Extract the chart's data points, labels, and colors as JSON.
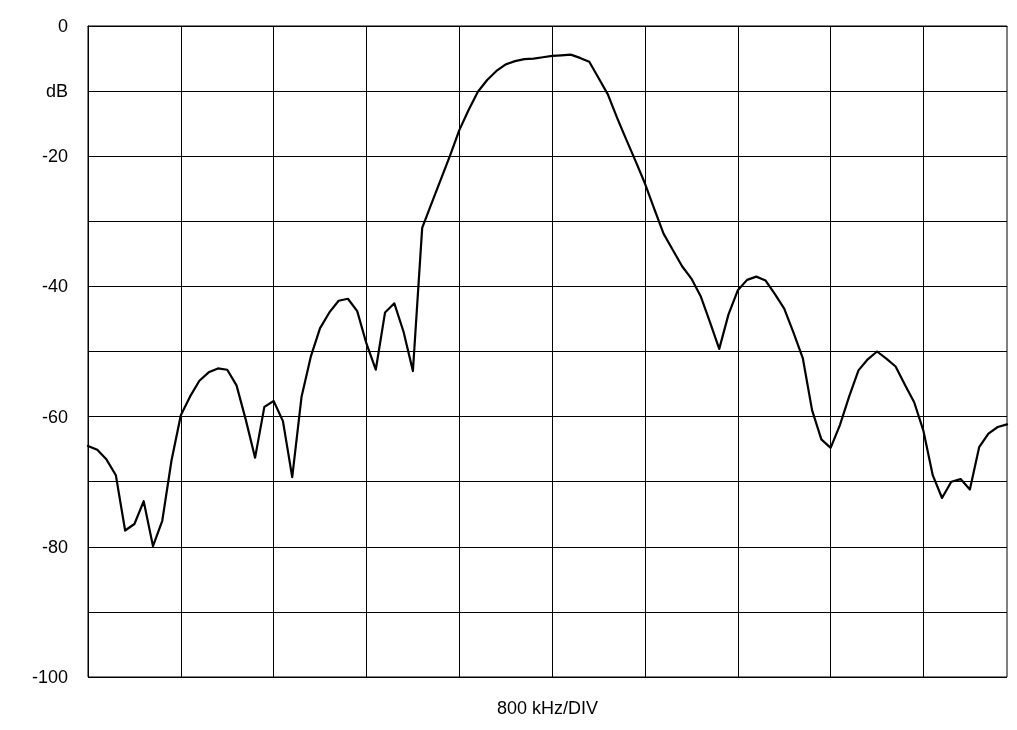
{
  "chart_data": {
    "type": "line",
    "xlabel": "800 kHz/DIV",
    "categories": [
      null,
      null,
      null,
      null,
      null,
      null,
      null,
      null,
      null,
      null,
      null,
      null,
      null,
      null,
      null,
      null,
      null,
      null,
      null,
      null,
      null,
      null,
      null,
      null,
      null,
      null,
      null,
      null,
      null,
      null,
      null,
      null,
      null,
      null,
      null,
      null,
      null,
      null,
      null,
      null,
      null,
      null,
      null,
      null,
      null,
      null,
      null,
      null,
      null,
      null,
      null,
      null,
      null,
      null,
      null,
      null,
      null,
      null,
      null,
      null,
      null,
      null,
      null,
      null,
      null,
      null,
      null,
      null,
      null,
      null,
      null,
      null,
      null,
      null,
      null,
      null,
      null,
      null,
      null,
      null,
      null,
      null,
      null,
      null,
      null,
      null,
      null,
      null,
      null,
      null,
      null,
      null,
      null,
      null,
      null,
      null,
      null,
      null,
      null,
      null
    ],
    "ylim": [
      -100,
      0
    ],
    "yticks": [
      0,
      {
        "value": -10,
        "label": "dB"
      },
      -20,
      {
        "value": -30,
        "label": null
      },
      -40,
      {
        "value": -50,
        "label": null
      },
      -60,
      {
        "value": -70,
        "label": null
      },
      -80,
      {
        "value": -90,
        "label": null
      },
      -100
    ],
    "tick_labels": "y",
    "grid": true,
    "marker": "none",
    "line_style": "solid",
    "series": [
      {
        "color": "#000000",
        "values": [
          -64.5,
          -65.1,
          -66.6,
          -69,
          -77.5,
          -76.5,
          -73,
          -79.9,
          -76,
          -66.7,
          -59.8,
          -56.9,
          -54.5,
          -53.2,
          -52.6,
          -52.8,
          -55.2,
          -60.5,
          -66.3,
          -58.5,
          -57.6,
          -60.7,
          -69.3,
          -57,
          -50.8,
          -46.4,
          -44,
          -42.2,
          -41.9,
          -43.8,
          -48.8,
          -52.8,
          -44,
          -42.6,
          -47,
          -53,
          -31,
          -27.3,
          -23.6,
          -19.9,
          -16,
          -12.9,
          -10.1,
          -8.3,
          -6.9,
          -5.9,
          -5.4,
          -5.1,
          -5,
          -4.8,
          -4.6,
          -4.5,
          -4.4,
          -4.9,
          -5.5,
          -8,
          -10.5,
          -14.1,
          -17.5,
          -20.8,
          -24.2,
          -28.1,
          -31.9,
          -34.4,
          -36.9,
          -38.8,
          -41.5,
          -45.5,
          -49.6,
          -44.3,
          -40.6,
          -39,
          -38.5,
          -39.1,
          -41.2,
          -43.4,
          -47.1,
          -51,
          -59,
          -63.5,
          -64.8,
          -61.3,
          -56.9,
          -52.9,
          -51.2,
          -50,
          -51.1,
          -52.3,
          -55.1,
          -57.8,
          -62.2,
          -69,
          -72.5,
          -70,
          -69.6,
          -71.2,
          -64.7,
          -62.6,
          -61.6,
          -61.2
        ]
      }
    ]
  }
}
